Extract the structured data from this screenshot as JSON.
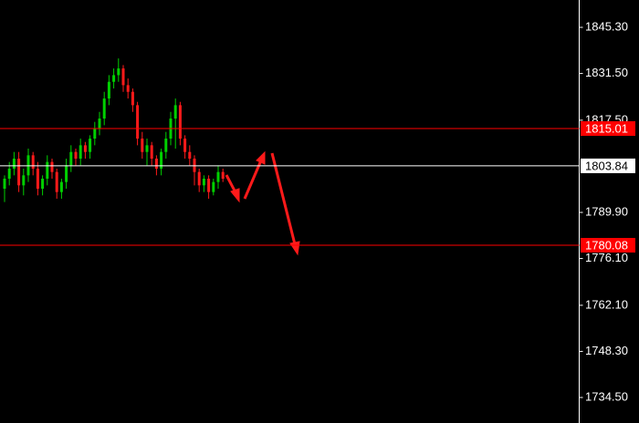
{
  "chart_data": {
    "type": "candlestick",
    "up_color": "#00d000",
    "down_color": "#ff1a1a",
    "open": [
      1797,
      1800,
      1803,
      1806,
      1798,
      1801,
      1807,
      1803,
      1797,
      1800,
      1805,
      1802,
      1796,
      1799,
      1804,
      1808,
      1806,
      1810,
      1808,
      1812,
      1815,
      1818,
      1824,
      1829,
      1831,
      1833,
      1828,
      1826,
      1822,
      1812,
      1808,
      1810,
      1806,
      1803,
      1808,
      1812,
      1818,
      1822,
      1812,
      1808,
      1806,
      1802,
      1798,
      1800,
      1796,
      1799,
      1802
    ],
    "high": [
      1801,
      1805,
      1808,
      1808,
      1803,
      1809,
      1808,
      1805,
      1801,
      1807,
      1806,
      1803,
      1800,
      1806,
      1810,
      1809,
      1812,
      1811,
      1813,
      1817,
      1820,
      1826,
      1831,
      1833,
      1836,
      1834,
      1830,
      1827,
      1823,
      1814,
      1812,
      1811,
      1807,
      1809,
      1814,
      1820,
      1824,
      1823,
      1813,
      1810,
      1807,
      1803,
      1801,
      1801,
      1800,
      1804,
      1803
    ],
    "low": [
      1793,
      1798,
      1801,
      1796,
      1795,
      1799,
      1801,
      1795,
      1795,
      1798,
      1800,
      1794,
      1794,
      1797,
      1802,
      1804,
      1804,
      1806,
      1806,
      1810,
      1813,
      1816,
      1822,
      1827,
      1829,
      1826,
      1824,
      1820,
      1810,
      1806,
      1804,
      1804,
      1801,
      1801,
      1806,
      1810,
      1809,
      1810,
      1806,
      1804,
      1798,
      1796,
      1796,
      1794,
      1795,
      1797,
      1799
    ],
    "close": [
      1800,
      1803,
      1806,
      1798,
      1801,
      1807,
      1803,
      1797,
      1800,
      1805,
      1802,
      1796,
      1799,
      1804,
      1808,
      1806,
      1810,
      1808,
      1812,
      1815,
      1818,
      1824,
      1829,
      1831,
      1833,
      1828,
      1826,
      1822,
      1812,
      1808,
      1810,
      1806,
      1803,
      1808,
      1812,
      1818,
      1822,
      1812,
      1808,
      1806,
      1802,
      1798,
      1800,
      1796,
      1799,
      1802,
      1800
    ],
    "ylim": [
      1726.86,
      1853.49
    ],
    "yticks": [
      {
        "value": 1845.3,
        "label": "1845.30"
      },
      {
        "value": 1831.5,
        "label": "1831.50"
      },
      {
        "value": 1817.5,
        "label": "1817.50"
      },
      {
        "value": 1789.9,
        "label": "1789.90"
      },
      {
        "value": 1776.1,
        "label": "1776.10"
      },
      {
        "value": 1762.1,
        "label": "1762.10"
      },
      {
        "value": 1748.3,
        "label": "1748.30"
      },
      {
        "value": 1734.5,
        "label": "1734.50"
      }
    ],
    "levels": [
      {
        "value": 1815.01,
        "color": "#ff0000"
      },
      {
        "value": 1803.84,
        "color": "#ffffff"
      },
      {
        "value": 1780.08,
        "color": "#ff0000"
      }
    ]
  }
}
